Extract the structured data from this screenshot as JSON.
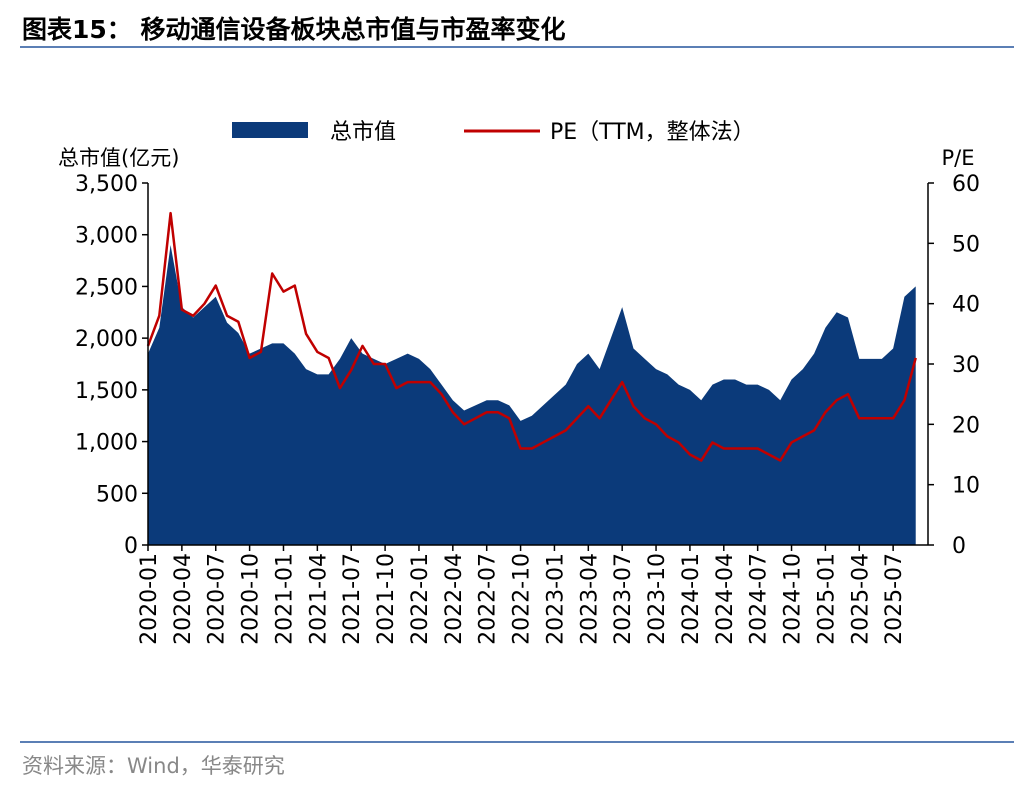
{
  "chart_data": {
    "type": "area",
    "title": "图表15：  移动通信设备板块总市值与市盈率变化",
    "source": "资料来源：Wind，华泰研究",
    "y_label": "总市值(亿元)",
    "y2_label": "P/E",
    "categories": [
      "2020-01",
      null,
      null,
      "2020-04",
      null,
      null,
      "2020-07",
      null,
      null,
      "2020-10",
      null,
      null,
      "2021-01",
      null,
      null,
      "2021-04",
      null,
      null,
      "2021-07",
      null,
      null,
      "2021-10",
      null,
      null,
      "2022-01",
      null,
      null,
      "2022-04",
      null,
      null,
      "2022-07",
      null,
      null,
      "2022-10",
      null,
      null,
      "2023-01",
      null,
      null,
      "2023-04",
      null,
      null,
      "2023-07",
      null,
      null,
      "2023-10",
      null,
      null,
      "2024-01",
      null,
      null,
      "2024-04",
      null,
      null,
      "2024-07",
      null,
      null,
      "2024-10",
      null,
      null,
      "2025-01",
      null,
      null,
      "2025-04",
      null,
      null,
      "2025-07",
      null,
      null
    ],
    "series": [
      {
        "name": "总市值",
        "type": "area",
        "color": "#0b3a7a",
        "axis": "y",
        "values": [
          1850,
          2100,
          2900,
          2300,
          2200,
          2300,
          2400,
          2150,
          2050,
          1850,
          1900,
          1950,
          1950,
          1850,
          1700,
          1650,
          1650,
          1800,
          2000,
          1850,
          1800,
          1750,
          1800,
          1850,
          1800,
          1700,
          1550,
          1400,
          1300,
          1350,
          1400,
          1400,
          1350,
          1200,
          1250,
          1350,
          1450,
          1550,
          1750,
          1850,
          1700,
          2000,
          2300,
          1900,
          1800,
          1700,
          1650,
          1550,
          1500,
          1400,
          1550,
          1600,
          1600,
          1550,
          1550,
          1500,
          1400,
          1600,
          1700,
          1850,
          2100,
          2250,
          2200,
          1800,
          1800,
          1800,
          1900,
          2400,
          2500
        ]
      },
      {
        "name": "PE（TTM，整体法）",
        "type": "line",
        "color": "#c00000",
        "axis": "y2",
        "values": [
          33,
          38,
          55,
          39,
          38,
          40,
          43,
          38,
          37,
          31,
          32,
          45,
          42,
          43,
          35,
          32,
          31,
          26,
          29,
          33,
          30,
          30,
          26,
          27,
          27,
          27,
          25,
          22,
          20,
          21,
          22,
          22,
          21,
          16,
          16,
          17,
          18,
          19,
          21,
          23,
          21,
          24,
          27,
          23,
          21,
          20,
          18,
          17,
          15,
          14,
          17,
          16,
          16,
          16,
          16,
          15,
          14,
          17,
          18,
          19,
          22,
          24,
          25,
          21,
          21,
          21,
          21,
          24,
          31
        ]
      }
    ],
    "ylim": [
      0,
      3500
    ],
    "yticks": [
      0,
      500,
      {
        "value": 1000,
        "label": "1,000"
      },
      {
        "value": 1500,
        "label": "1,500"
      },
      {
        "value": 2000,
        "label": "2,000"
      },
      {
        "value": 2500,
        "label": "2,500"
      },
      {
        "value": 3000,
        "label": "3,000"
      },
      {
        "value": 3500,
        "label": "3,500"
      }
    ],
    "y2lim": [
      0,
      60
    ],
    "y2ticks": [
      0,
      10,
      20,
      30,
      40,
      50,
      60
    ],
    "legend": "top"
  }
}
